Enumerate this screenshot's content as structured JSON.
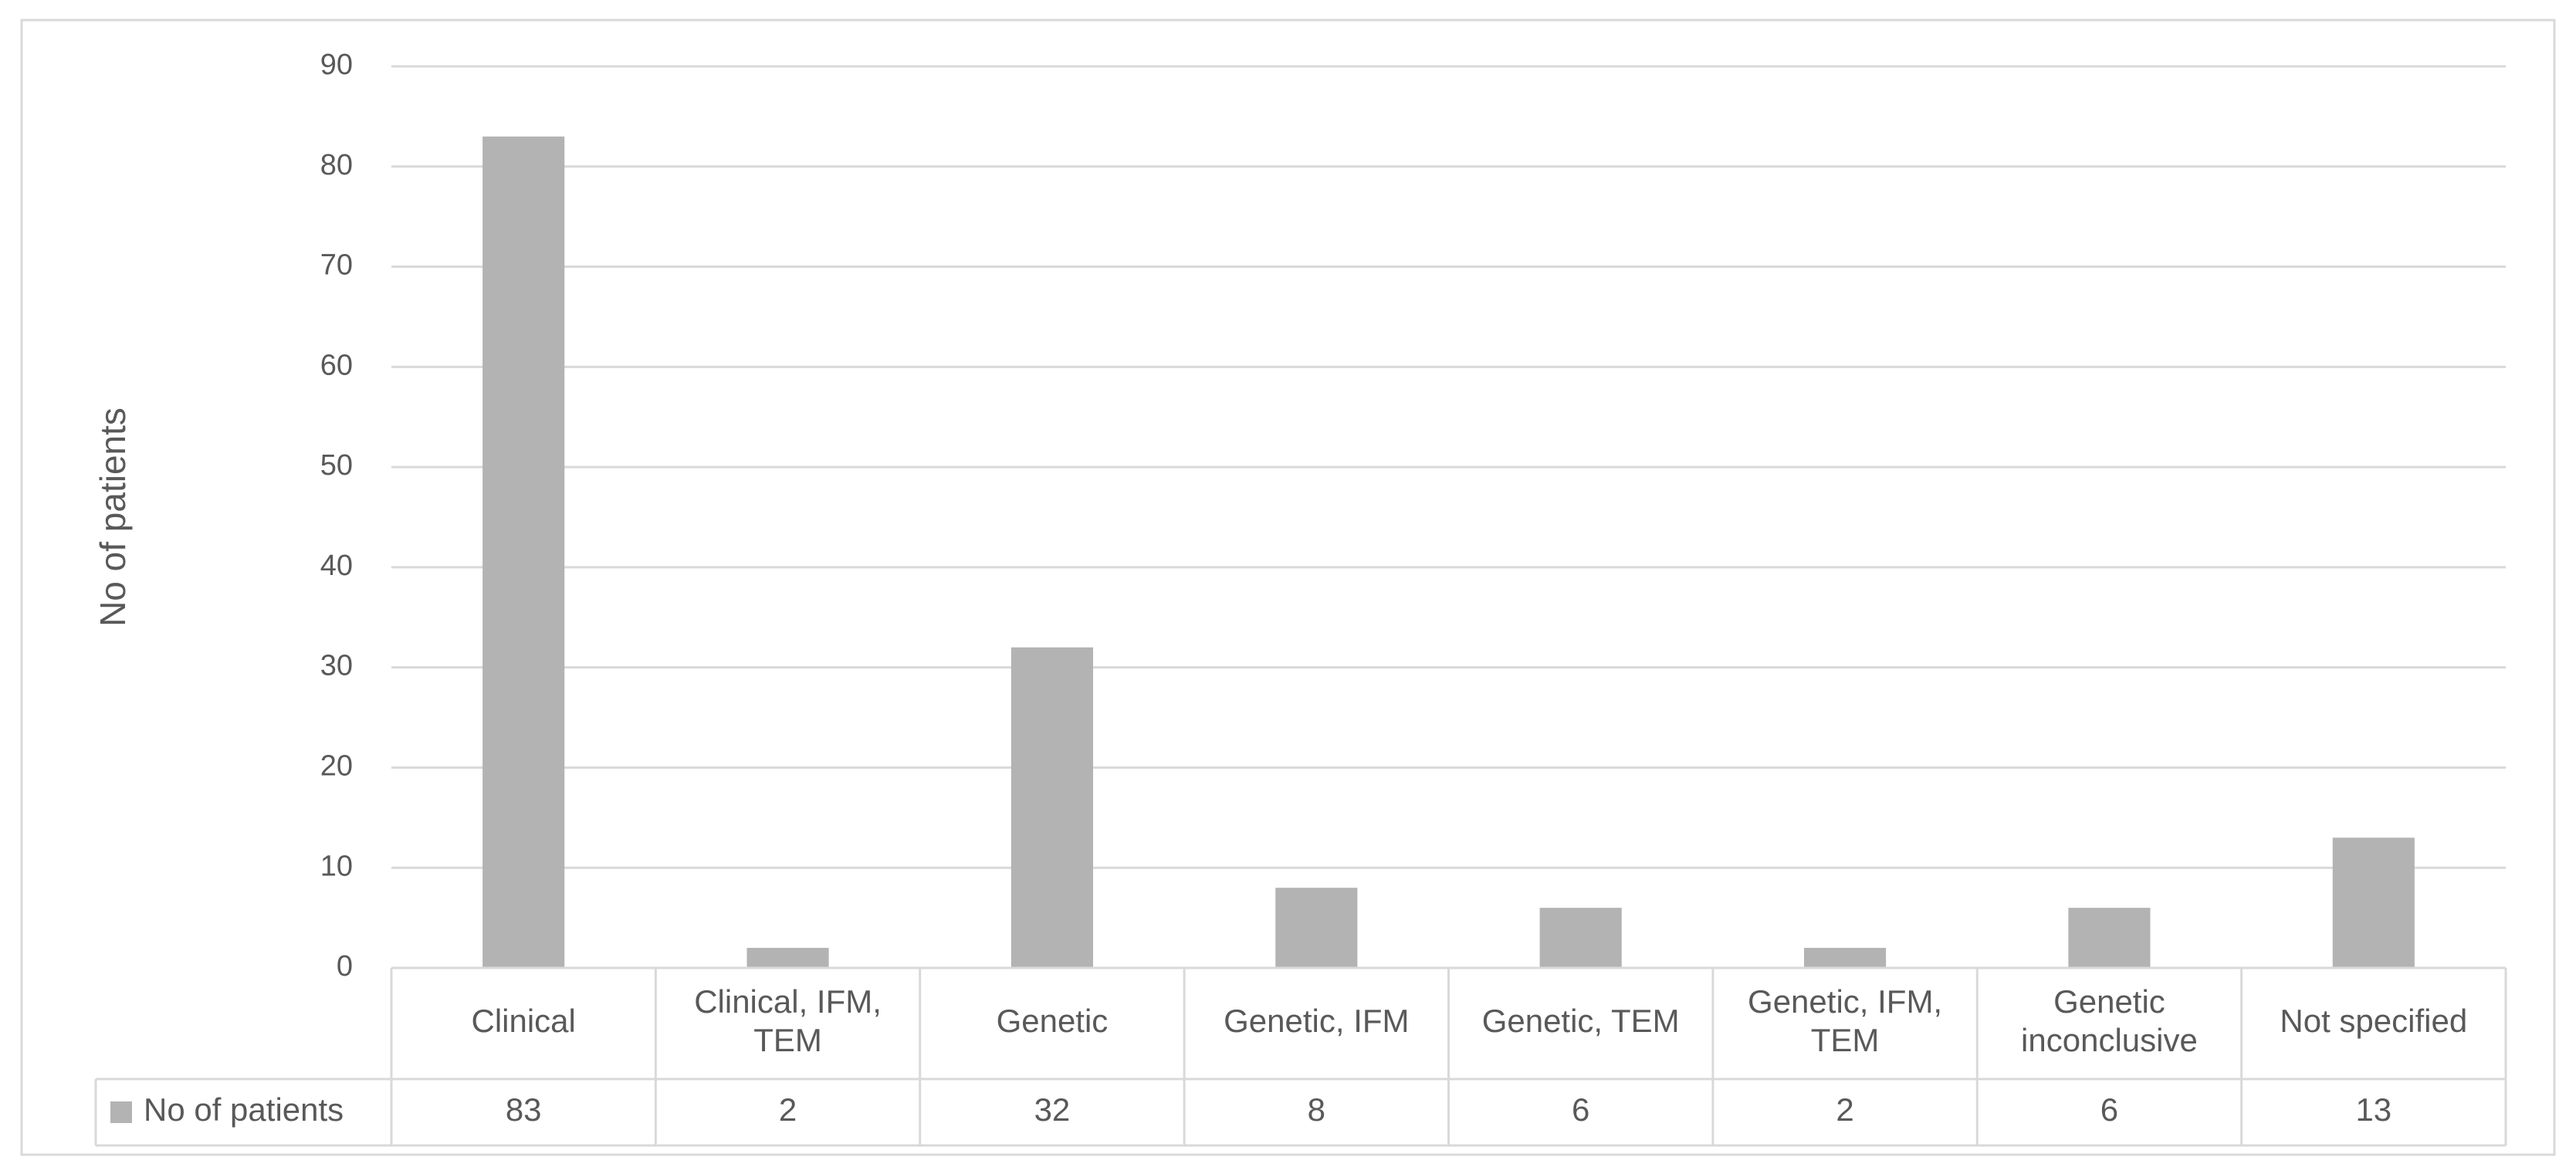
{
  "chart_data": {
    "type": "bar",
    "ylabel": "No of patients",
    "xlabel": "",
    "title": "",
    "ylim": [
      0,
      90
    ],
    "yticks": [
      0,
      10,
      20,
      30,
      40,
      50,
      60,
      70,
      80,
      90
    ],
    "grid": true,
    "legend_position": "data-table-left",
    "data_table": true,
    "categories": [
      [
        "Clinical"
      ],
      [
        "Clinical, IFM,",
        "TEM"
      ],
      [
        "Genetic"
      ],
      [
        "Genetic, IFM"
      ],
      [
        "Genetic, TEM"
      ],
      [
        "Genetic, IFM,",
        "TEM"
      ],
      [
        "Genetic",
        "inconclusive"
      ],
      [
        "Not specified"
      ]
    ],
    "series": [
      {
        "name": "No of patients",
        "color": "#b3b3b3",
        "values": [
          83,
          2,
          32,
          8,
          6,
          2,
          6,
          13
        ]
      }
    ]
  },
  "colors": {
    "bar": "#b3b3b3",
    "grid": "#d9d9d9",
    "text": "#595959",
    "frame": "#d9d9d9"
  }
}
